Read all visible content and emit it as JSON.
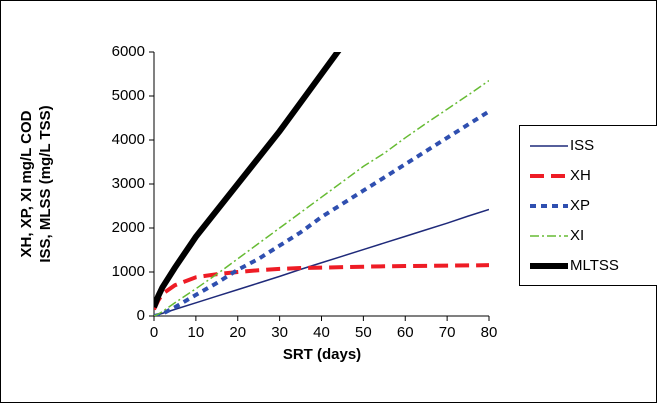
{
  "chart_data": {
    "type": "line",
    "x_label": "SRT (days)",
    "y_label": [
      "XH, XP, XI mg/L COD",
      "ISS, MLSS (mg/L TSS)"
    ],
    "x": [
      0,
      1,
      2,
      5,
      10,
      15,
      20,
      25,
      30,
      35,
      40,
      45,
      50,
      55,
      60,
      65,
      70,
      75,
      80
    ],
    "series": [
      {
        "name": "ISS",
        "color": "#1f2a7a",
        "values": [
          0,
          30,
          60,
          150,
          300,
          450,
          600,
          750,
          900,
          1060,
          1210,
          1360,
          1510,
          1660,
          1810,
          1960,
          2110,
          2270,
          2420
        ]
      },
      {
        "name": "XH",
        "color": "#ee1c25",
        "values": [
          150,
          350,
          500,
          700,
          880,
          950,
          1000,
          1040,
          1070,
          1090,
          1100,
          1110,
          1120,
          1130,
          1135,
          1140,
          1145,
          1150,
          1155
        ]
      },
      {
        "name": "XP",
        "color": "#2f4fb0",
        "values": [
          0,
          20,
          50,
          200,
          480,
          750,
          1050,
          1300,
          1600,
          1900,
          2250,
          2550,
          2850,
          3150,
          3450,
          3750,
          4050,
          4350,
          4650
        ]
      },
      {
        "name": "XI",
        "color": "#66bb33",
        "values": [
          0,
          40,
          100,
          300,
          620,
          950,
          1300,
          1650,
          2000,
          2350,
          2700,
          3050,
          3400,
          3700,
          4050,
          4380,
          4700,
          5020,
          5350
        ]
      },
      {
        "name": "MLTSS",
        "color": "#000000",
        "values": [
          200,
          450,
          650,
          1100,
          1800,
          2400,
          3000,
          3600,
          4200,
          4850,
          5500,
          6150,
          null,
          null,
          null,
          null,
          null,
          null,
          null
        ]
      }
    ],
    "xlim": [
      0,
      80
    ],
    "xticks": [
      0,
      10,
      20,
      30,
      40,
      50,
      60,
      70,
      80
    ],
    "ylim": [
      0,
      6000
    ],
    "yticks": [
      0,
      1000,
      2000,
      3000,
      4000,
      5000,
      6000
    ],
    "grid": false,
    "legend": "right"
  }
}
